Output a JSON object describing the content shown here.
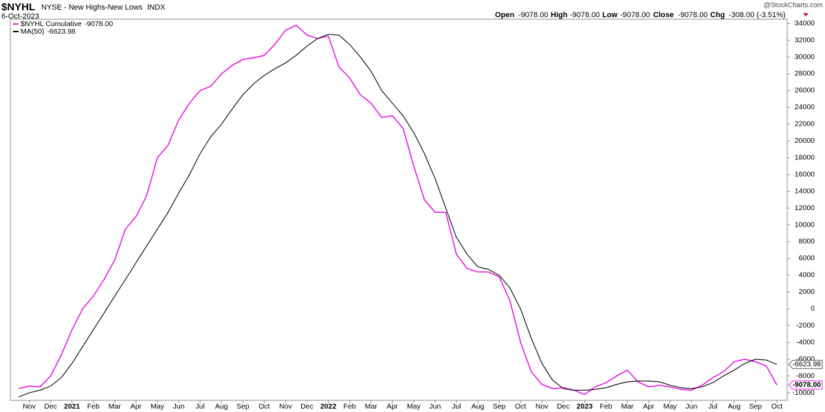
{
  "chart_data": {
    "type": "line",
    "symbol": "$NYHL",
    "title": "NYSE - New Highs-New Lows",
    "exchange": "INDX",
    "date": "6-Oct-2023",
    "credit": "@StockCharts.com",
    "quote": {
      "open_label": "Open",
      "open": "-9078.00",
      "high_label": "High",
      "high": "-9078.00",
      "low_label": "Low",
      "low": "-9078.00",
      "close_label": "Close",
      "close": "-9078.00",
      "chg_label": "Chg",
      "chg": "-308.00 (-3.51%)"
    },
    "categories": [
      null,
      "Nov",
      null,
      "Dec",
      null,
      "2021",
      null,
      "Feb",
      null,
      "Mar",
      null,
      "Apr",
      null,
      "May",
      null,
      "Jun",
      null,
      "Jul",
      null,
      "Aug",
      null,
      "Sep",
      null,
      "Oct",
      null,
      "Nov",
      null,
      "Dec",
      null,
      "2022",
      null,
      "Feb",
      null,
      "Mar",
      null,
      "Apr",
      null,
      "May",
      null,
      "Jun",
      null,
      "Jul",
      null,
      "Aug",
      null,
      "Sep",
      null,
      "Oct",
      null,
      "Nov",
      null,
      "Dec",
      null,
      "2023",
      null,
      "Feb",
      null,
      "Mar",
      null,
      "Apr",
      null,
      "May",
      null,
      "Jun",
      null,
      "Jul",
      null,
      "Aug",
      null,
      "Sep",
      null,
      "Oct"
    ],
    "series": [
      {
        "name": "$NYHL Cumulative",
        "color": "#e619e6",
        "last_label": "-9078.00",
        "values": [
          -9500,
          -9200,
          -9300,
          -8000,
          -5500,
          -2500,
          0,
          1500,
          3500,
          5800,
          9500,
          11000,
          13500,
          18000,
          19500,
          22500,
          24500,
          26000,
          26500,
          28000,
          29000,
          29700,
          29900,
          30200,
          31500,
          33200,
          33800,
          32600,
          32200,
          32500,
          28800,
          27500,
          25500,
          24500,
          22800,
          23000,
          21500,
          17000,
          13000,
          11500,
          11500,
          6500,
          4800,
          4400,
          4400,
          3800,
          1000,
          -4000,
          -7500,
          -9000,
          -9500,
          -9400,
          -9700,
          -10200,
          -9300,
          -8800,
          -8000,
          -7300,
          -8700,
          -9300,
          -9100,
          -9300,
          -9600,
          -9700,
          -9100,
          -8200,
          -7500,
          -6300,
          -6000,
          -6300,
          -6800,
          -9078
        ]
      },
      {
        "name": "MA(50)",
        "color": "#000000",
        "last_label": "-6623.98",
        "values": [
          -10500,
          -10000,
          -9700,
          -9200,
          -8200,
          -6500,
          -4500,
          -2500,
          -500,
          1500,
          3500,
          5500,
          7500,
          9500,
          11500,
          13800,
          16000,
          18500,
          20500,
          22000,
          23800,
          25500,
          26800,
          27800,
          28600,
          29300,
          30200,
          31300,
          32200,
          32700,
          32600,
          31500,
          30000,
          28300,
          26000,
          24500,
          23000,
          21000,
          18500,
          15500,
          12000,
          8500,
          6500,
          5000,
          4700,
          4000,
          2500,
          0,
          -3500,
          -6500,
          -8500,
          -9500,
          -9700,
          -9700,
          -9600,
          -9400,
          -9000,
          -8700,
          -8600,
          -8600,
          -8700,
          -9100,
          -9400,
          -9500,
          -9300,
          -8800,
          -8000,
          -7300,
          -6500,
          -6000,
          -6100,
          -6623.98
        ]
      }
    ],
    "ylim": [
      -10900,
      34500
    ],
    "yticks": [
      34000,
      32000,
      30000,
      28000,
      26000,
      24000,
      22000,
      20000,
      18000,
      16000,
      14000,
      12000,
      10000,
      8000,
      6000,
      4000,
      2000,
      0,
      -2000,
      -4000,
      -6000,
      -8000,
      -10000
    ],
    "grid": false
  }
}
